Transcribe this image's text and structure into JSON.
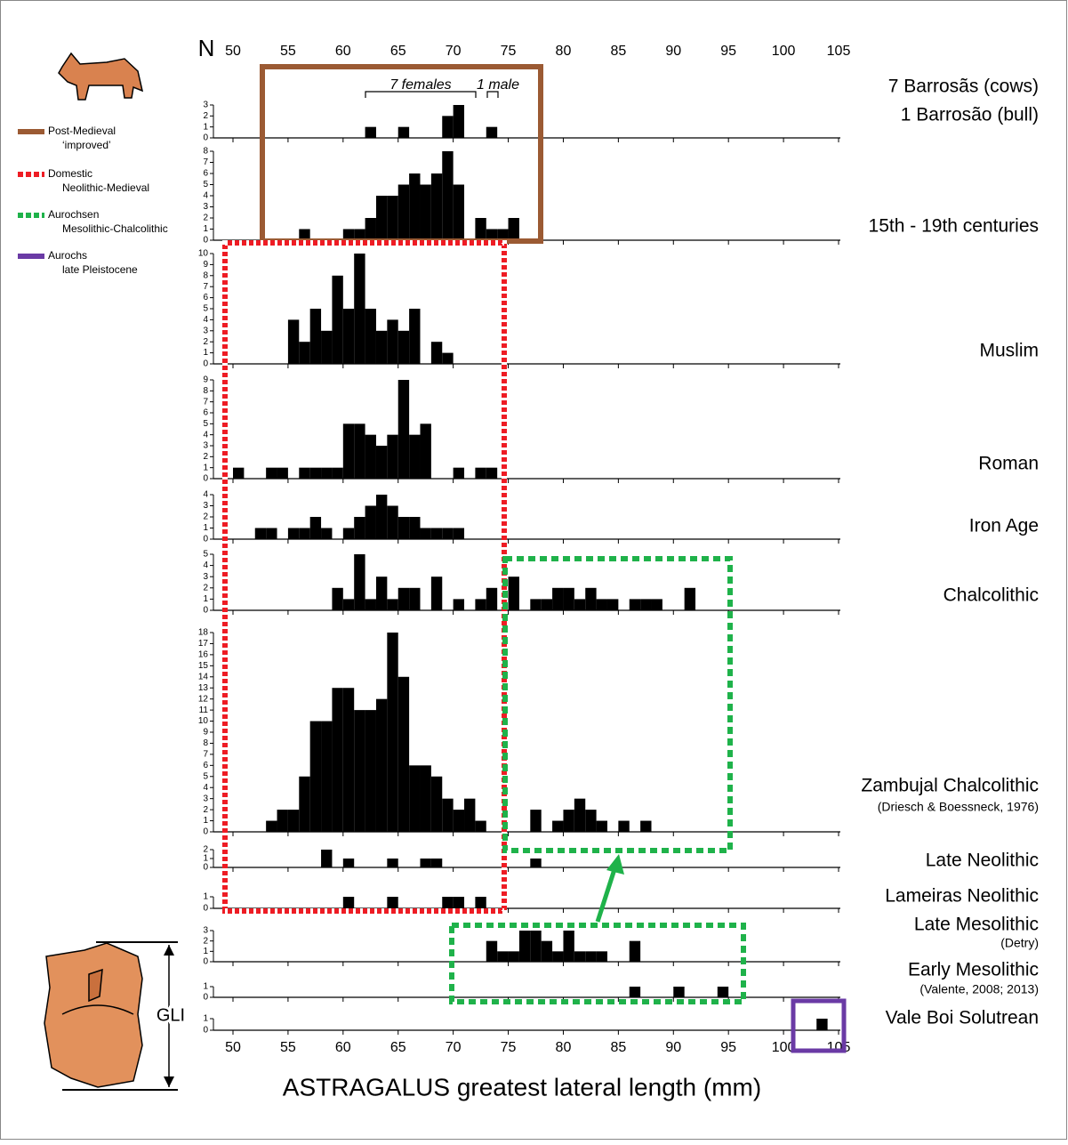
{
  "chart_data": {
    "type": "bar",
    "color": "#000000",
    "bin_width": 1,
    "x_label": "ASTRAGALUS greatest lateral length (mm)",
    "y_label": "N",
    "xlim": [
      50,
      105
    ],
    "xticks": [
      50,
      55,
      60,
      65,
      70,
      75,
      80,
      85,
      90,
      95,
      100,
      105
    ],
    "annotations": [
      "7 females",
      "1 male"
    ],
    "side_label": "GLI",
    "legend": [
      {
        "label": "Post-Medieval",
        "sublabel": "‘improved’",
        "color": "#9b5a33"
      },
      {
        "label": "Domestic",
        "sublabel": "Neolithic-Medieval",
        "color": "#ee1c24"
      },
      {
        "label": "Aurochsen",
        "sublabel": "Mesolithic-Chalcolithic",
        "color": "#1fb24a"
      },
      {
        "label": "Aurochs",
        "sublabel": "late Pleistocene",
        "color": "#6a3aa5"
      }
    ],
    "panels": [
      {
        "name": "7 Barrosãs (cows)",
        "subtitle": "1 Barrosão (bull)",
        "ylim": [
          0,
          3
        ],
        "yticks": [
          0,
          1,
          2,
          3
        ],
        "x": [
          62,
          65,
          69,
          70,
          73
        ],
        "values": [
          1,
          1,
          2,
          3,
          1
        ]
      },
      {
        "name": "15th - 19th centuries",
        "ylim": [
          0,
          8
        ],
        "yticks": [
          0,
          1,
          2,
          3,
          4,
          5,
          6,
          7,
          8
        ],
        "x": [
          56,
          60,
          61,
          62,
          63,
          64,
          65,
          66,
          67,
          68,
          69,
          70,
          72,
          73,
          74,
          75
        ],
        "values": [
          1,
          1,
          1,
          2,
          4,
          4,
          5,
          6,
          5,
          6,
          8,
          5,
          2,
          1,
          1,
          2
        ]
      },
      {
        "name": "Muslim",
        "ylim": [
          0,
          10
        ],
        "yticks": [
          0,
          1,
          2,
          3,
          4,
          5,
          6,
          7,
          8,
          9,
          10
        ],
        "x": [
          55,
          56,
          57,
          58,
          59,
          60,
          61,
          62,
          63,
          64,
          65,
          66,
          68,
          69
        ],
        "values": [
          4,
          2,
          5,
          3,
          8,
          5,
          10,
          5,
          3,
          4,
          3,
          5,
          2,
          1
        ]
      },
      {
        "name": "Roman",
        "ylim": [
          0,
          9
        ],
        "yticks": [
          0,
          1,
          2,
          3,
          4,
          5,
          6,
          7,
          8,
          9
        ],
        "x": [
          50,
          53,
          54,
          56,
          57,
          58,
          59,
          60,
          61,
          62,
          63,
          64,
          65,
          66,
          67,
          70,
          72,
          73
        ],
        "values": [
          1,
          1,
          1,
          1,
          1,
          1,
          1,
          5,
          5,
          4,
          3,
          4,
          9,
          4,
          5,
          1,
          1,
          1
        ]
      },
      {
        "name": "Iron Age",
        "ylim": [
          0,
          4
        ],
        "yticks": [
          0,
          1,
          2,
          3,
          4
        ],
        "x": [
          52,
          53,
          55,
          56,
          57,
          58,
          60,
          61,
          62,
          63,
          64,
          65,
          66,
          67,
          68,
          69,
          70
        ],
        "values": [
          1,
          1,
          1,
          1,
          2,
          1,
          1,
          2,
          3,
          4,
          3,
          2,
          2,
          1,
          1,
          1,
          1
        ]
      },
      {
        "name": "Chalcolithic",
        "ylim": [
          0,
          5
        ],
        "yticks": [
          0,
          1,
          2,
          3,
          4,
          5
        ],
        "x": [
          59,
          60,
          61,
          62,
          63,
          64,
          65,
          66,
          68,
          70,
          72,
          73,
          75,
          77,
          78,
          79,
          80,
          81,
          82,
          83,
          84,
          86,
          87,
          88,
          91
        ],
        "values": [
          2,
          1,
          5,
          1,
          3,
          1,
          2,
          2,
          3,
          1,
          1,
          2,
          3,
          1,
          1,
          2,
          2,
          1,
          2,
          1,
          1,
          1,
          1,
          1,
          2
        ]
      },
      {
        "name": "Zambujal Chalcolithic",
        "subtitle": "(Driesch & Boessneck, 1976)",
        "ylim": [
          0,
          18
        ],
        "yticks": [
          0,
          1,
          2,
          3,
          4,
          5,
          6,
          7,
          8,
          9,
          10,
          11,
          12,
          13,
          14,
          15,
          16,
          17,
          18
        ],
        "x": [
          53,
          54,
          55,
          56,
          57,
          58,
          59,
          60,
          61,
          62,
          63,
          64,
          65,
          66,
          67,
          68,
          69,
          70,
          71,
          72,
          77,
          79,
          80,
          81,
          82,
          83,
          85,
          87
        ],
        "values": [
          1,
          2,
          2,
          5,
          10,
          10,
          13,
          13,
          11,
          11,
          12,
          18,
          14,
          6,
          6,
          5,
          3,
          2,
          3,
          1,
          2,
          1,
          2,
          3,
          2,
          1,
          1,
          1
        ]
      },
      {
        "name": "Late Neolithic",
        "ylim": [
          0,
          2
        ],
        "yticks": [
          0,
          1,
          2
        ],
        "x": [
          58,
          60,
          64,
          67,
          68,
          77
        ],
        "values": [
          2,
          1,
          1,
          1,
          1,
          1
        ]
      },
      {
        "name": "Lameiras Neolithic",
        "ylim": [
          0,
          1
        ],
        "yticks": [
          0,
          1
        ],
        "x": [
          60,
          64,
          69,
          70,
          72
        ],
        "values": [
          1,
          1,
          1,
          1,
          1
        ]
      },
      {
        "name": "Late Mesolithic",
        "subtitle": "(Detry)",
        "ylim": [
          0,
          3
        ],
        "yticks": [
          0,
          1,
          2,
          3
        ],
        "x": [
          73,
          74,
          75,
          76,
          77,
          78,
          79,
          80,
          81,
          82,
          83,
          86
        ],
        "values": [
          2,
          1,
          1,
          3,
          3,
          2,
          1,
          3,
          1,
          1,
          1,
          2
        ]
      },
      {
        "name": "Early Mesolithic",
        "subtitle": "(Valente, 2008; 2013)",
        "ylim": [
          0,
          1
        ],
        "yticks": [
          0,
          1
        ],
        "x": [
          86,
          90,
          94
        ],
        "values": [
          1,
          1,
          1
        ]
      },
      {
        "name": "Vale Boi Solutrean",
        "ylim": [
          0,
          1
        ],
        "yticks": [
          0,
          1
        ],
        "x": [
          103
        ],
        "values": [
          1
        ]
      }
    ]
  }
}
